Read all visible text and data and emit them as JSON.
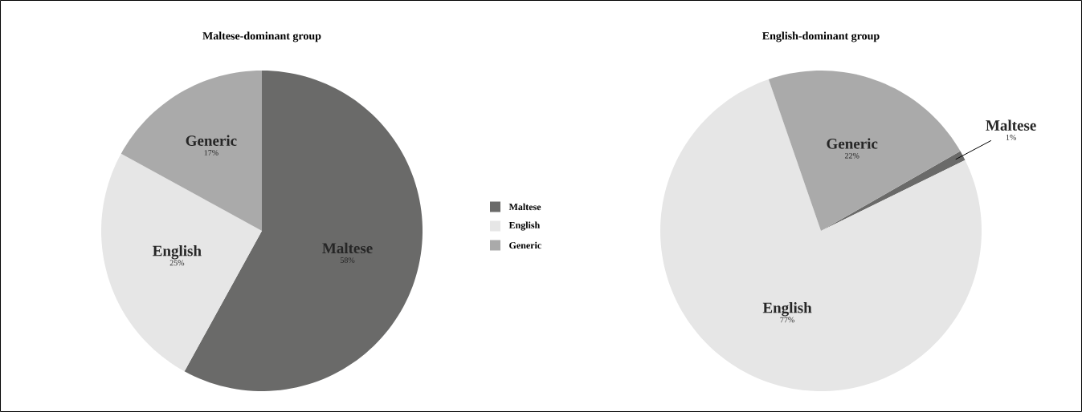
{
  "chart_data": [
    {
      "type": "pie",
      "title": "Maltese-dominant group",
      "categories": [
        "Maltese",
        "English",
        "Generic"
      ],
      "values": [
        58,
        25,
        17
      ],
      "value_labels": [
        "58%",
        "25%",
        "17%"
      ],
      "colors": [
        "#6a6a69",
        "#e6e6e6",
        "#aaaaaa"
      ],
      "legend": "right"
    },
    {
      "type": "pie",
      "title": "English-dominant group",
      "categories": [
        "Maltese",
        "English",
        "Generic"
      ],
      "values": [
        1,
        77,
        22
      ],
      "value_labels": [
        "1%",
        "77%",
        "22%"
      ],
      "colors": [
        "#6a6a69",
        "#e6e6e6",
        "#aaaaaa"
      ],
      "legend": false
    }
  ]
}
